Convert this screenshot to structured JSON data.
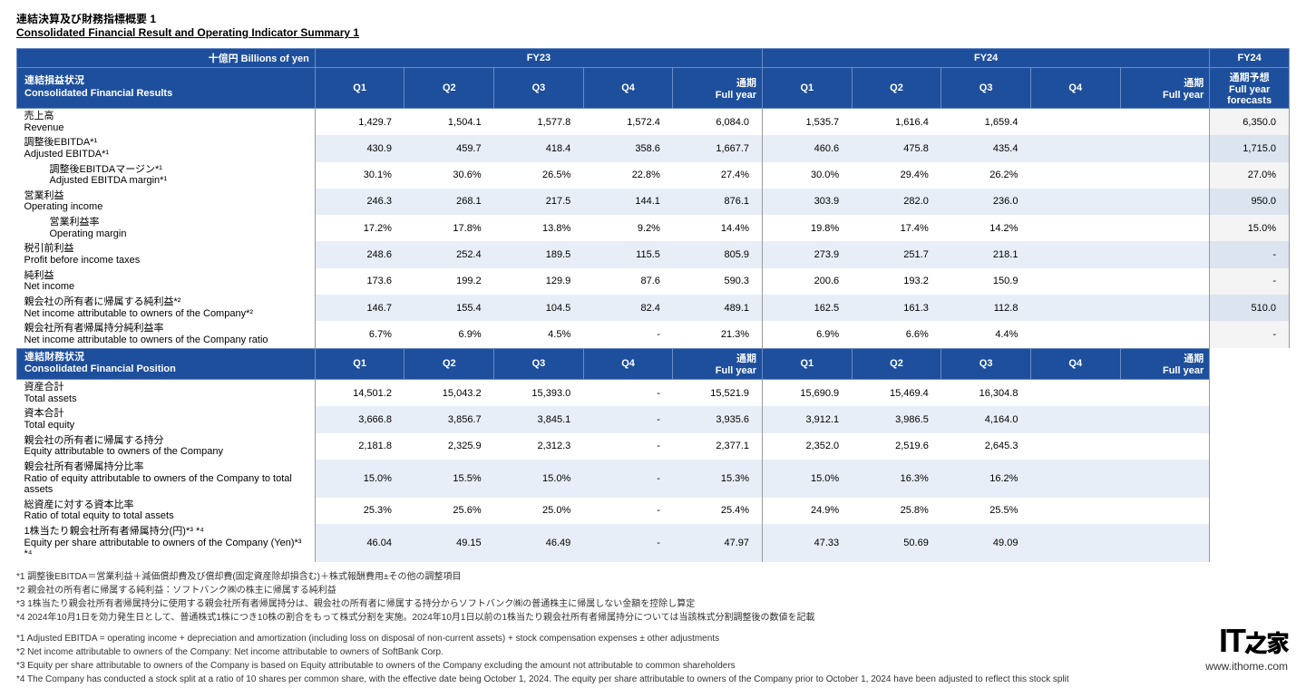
{
  "title_jp": "連結決算及び財務指標概要 1",
  "title_en": "Consolidated Financial Result and Operating Indicator Summary 1",
  "unit": "十億円 Billions of yen",
  "fy23": "FY23",
  "fy24": "FY24",
  "fy24f": "FY24",
  "cols": {
    "q1": "Q1",
    "q2": "Q2",
    "q3": "Q3",
    "q4": "Q4",
    "fy_jp": "通期",
    "fy_en": "Full year",
    "fc_jp": "通期予想",
    "fc_en1": "Full year",
    "fc_en2": "forecasts"
  },
  "sect1_jp": "連結損益状況",
  "sect1_en": "Consolidated Financial Results",
  "sect2_jp": "連結財務状況",
  "sect2_en": "Consolidated Financial Position",
  "r1": {
    "jp": "売上高",
    "en": "Revenue",
    "a1": "1,429.7",
    "a2": "1,504.1",
    "a3": "1,577.8",
    "a4": "1,572.4",
    "af": "6,084.0",
    "b1": "1,535.7",
    "b2": "1,616.4",
    "b3": "1,659.4",
    "b4": "",
    "bf": "",
    "fc": "6,350.0"
  },
  "r2": {
    "jp": "調整後EBITDA*¹",
    "en": "Adjusted EBITDA*¹",
    "a1": "430.9",
    "a2": "459.7",
    "a3": "418.4",
    "a4": "358.6",
    "af": "1,667.7",
    "b1": "460.6",
    "b2": "475.8",
    "b3": "435.4",
    "b4": "",
    "bf": "",
    "fc": "1,715.0"
  },
  "r3": {
    "jp": "調整後EBITDAマージン*¹",
    "en": "Adjusted EBITDA margin*¹",
    "a1": "30.1%",
    "a2": "30.6%",
    "a3": "26.5%",
    "a4": "22.8%",
    "af": "27.4%",
    "b1": "30.0%",
    "b2": "29.4%",
    "b3": "26.2%",
    "b4": "",
    "bf": "",
    "fc": "27.0%"
  },
  "r4": {
    "jp": "営業利益",
    "en": "Operating income",
    "a1": "246.3",
    "a2": "268.1",
    "a3": "217.5",
    "a4": "144.1",
    "af": "876.1",
    "b1": "303.9",
    "b2": "282.0",
    "b3": "236.0",
    "b4": "",
    "bf": "",
    "fc": "950.0"
  },
  "r5": {
    "jp": "営業利益率",
    "en": "Operating margin",
    "a1": "17.2%",
    "a2": "17.8%",
    "a3": "13.8%",
    "a4": "9.2%",
    "af": "14.4%",
    "b1": "19.8%",
    "b2": "17.4%",
    "b3": "14.2%",
    "b4": "",
    "bf": "",
    "fc": "15.0%"
  },
  "r6": {
    "jp": "税引前利益",
    "en": "Profit before income taxes",
    "a1": "248.6",
    "a2": "252.4",
    "a3": "189.5",
    "a4": "115.5",
    "af": "805.9",
    "b1": "273.9",
    "b2": "251.7",
    "b3": "218.1",
    "b4": "",
    "bf": "",
    "fc": "-"
  },
  "r7": {
    "jp": "純利益",
    "en": "Net income",
    "a1": "173.6",
    "a2": "199.2",
    "a3": "129.9",
    "a4": "87.6",
    "af": "590.3",
    "b1": "200.6",
    "b2": "193.2",
    "b3": "150.9",
    "b4": "",
    "bf": "",
    "fc": "-"
  },
  "r8": {
    "jp": "親会社の所有者に帰属する純利益*²",
    "en": "Net income attributable to owners of the Company*²",
    "a1": "146.7",
    "a2": "155.4",
    "a3": "104.5",
    "a4": "82.4",
    "af": "489.1",
    "b1": "162.5",
    "b2": "161.3",
    "b3": "112.8",
    "b4": "",
    "bf": "",
    "fc": "510.0"
  },
  "r9": {
    "jp": "親会社所有者帰属持分純利益率",
    "en": "Net income attributable to owners of the Company ratio",
    "a1": "6.7%",
    "a2": "6.9%",
    "a3": "4.5%",
    "a4": "-",
    "af": "21.3%",
    "b1": "6.9%",
    "b2": "6.6%",
    "b3": "4.4%",
    "b4": "",
    "bf": "",
    "fc": "-"
  },
  "p1": {
    "jp": "資産合計",
    "en": "Total assets",
    "a1": "14,501.2",
    "a2": "15,043.2",
    "a3": "15,393.0",
    "a4": "-",
    "af": "15,521.9",
    "b1": "15,690.9",
    "b2": "15,469.4",
    "b3": "16,304.8",
    "b4": "",
    "bf": ""
  },
  "p2": {
    "jp": "資本合計",
    "en": "Total equity",
    "a1": "3,666.8",
    "a2": "3,856.7",
    "a3": "3,845.1",
    "a4": "-",
    "af": "3,935.6",
    "b1": "3,912.1",
    "b2": "3,986.5",
    "b3": "4,164.0",
    "b4": "",
    "bf": ""
  },
  "p3": {
    "jp": "親会社の所有者に帰属する持分",
    "en": "Equity attributable to owners of the Company",
    "a1": "2,181.8",
    "a2": "2,325.9",
    "a3": "2,312.3",
    "a4": "-",
    "af": "2,377.1",
    "b1": "2,352.0",
    "b2": "2,519.6",
    "b3": "2,645.3",
    "b4": "",
    "bf": ""
  },
  "p4": {
    "jp": "親会社所有者帰属持分比率",
    "en": "Ratio of equity attributable to owners of the Company to total assets",
    "a1": "15.0%",
    "a2": "15.5%",
    "a3": "15.0%",
    "a4": "-",
    "af": "15.3%",
    "b1": "15.0%",
    "b2": "16.3%",
    "b3": "16.2%",
    "b4": "",
    "bf": ""
  },
  "p5": {
    "jp": "総資産に対する資本比率",
    "en": "Ratio of total equity to total assets",
    "a1": "25.3%",
    "a2": "25.6%",
    "a3": "25.0%",
    "a4": "-",
    "af": "25.4%",
    "b1": "24.9%",
    "b2": "25.8%",
    "b3": "25.5%",
    "b4": "",
    "bf": ""
  },
  "p6": {
    "jp": "1株当たり親会社所有者帰属持分(円)*³ *⁴",
    "en": "Equity per share attributable to owners of the Company (Yen)*³ *⁴",
    "a1": "46.04",
    "a2": "49.15",
    "a3": "46.49",
    "a4": "-",
    "af": "47.97",
    "b1": "47.33",
    "b2": "50.69",
    "b3": "49.09",
    "b4": "",
    "bf": ""
  },
  "notes_jp": [
    "*1 調整後EBITDA＝営業利益＋減価償却費及び償却費(固定資産除却損含む)＋株式報酬費用±その他の調整項目",
    "*2 親会社の所有者に帰属する純利益：ソフトバンク㈱の株主に帰属する純利益",
    "*3 1株当たり親会社所有者帰属持分に使用する親会社所有者帰属持分は、親会社の所有者に帰属する持分からソフトバンク㈱の普通株主に帰属しない金額を控除し算定",
    "*4 2024年10月1日を効力発生日として、普通株式1株につき10株の割合をもって株式分割を実施。2024年10月1日以前の1株当たり親会社所有者帰属持分については当該株式分割調整後の数値を記載"
  ],
  "notes_en": [
    "*1 Adjusted EBITDA = operating income + depreciation and amortization (including loss on disposal of non-current assets) + stock compensation expenses ± other adjustments",
    "*2 Net income attributable to owners of the Company: Net income attributable to owners of SoftBank Corp.",
    "*3 Equity per share attributable to owners of the Company is based on Equity attributable to owners of the Company excluding the amount not attributable to common shareholders",
    "*4 The Company has conducted a stock split at a ratio of 10 shares per common share, with the effective date being October 1, 2024. The equity per share attributable to owners of the Company prior to October 1, 2024 have been adjusted to reflect this stock split"
  ],
  "wm_logo": "IT之家",
  "wm_url": "www.ithome.com"
}
